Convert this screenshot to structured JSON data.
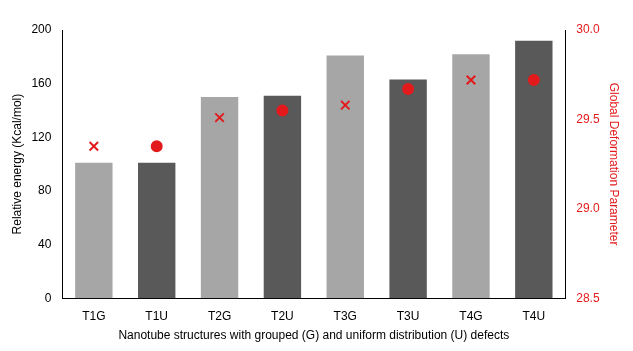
{
  "chart_data": {
    "type": "bar",
    "x_label": "Nanotube structures with grouped (G) and uniform distribution (U) defects",
    "y_label": "Relative energy (Kcal/mol)",
    "y2_label": "Global Deformation Parameter",
    "categories": [
      "T1G",
      "T1U",
      "T2G",
      "T2U",
      "T3G",
      "T3U",
      "T4G",
      "T4U"
    ],
    "series": [
      {
        "type": "bar",
        "values": [
          101,
          101,
          150,
          151,
          181,
          163,
          182,
          192
        ],
        "colors": [
          "#a6a6a6",
          "#595959",
          "#a6a6a6",
          "#595959",
          "#a6a6a6",
          "#595959",
          "#a6a6a6",
          "#595959"
        ]
      },
      {
        "type": "scatter",
        "axis": "y2",
        "marker": "cross",
        "color": "#e31a1c",
        "values": [
          29.35,
          null,
          29.51,
          null,
          29.58,
          null,
          29.72,
          null
        ]
      },
      {
        "type": "scatter",
        "axis": "y2",
        "marker": "circle",
        "color": "#e31a1c",
        "values": [
          null,
          29.35,
          null,
          29.55,
          null,
          29.67,
          null,
          29.72
        ]
      }
    ],
    "ylim": [
      0,
      200
    ],
    "yticks": [
      0,
      40,
      80,
      120,
      160,
      200
    ],
    "y2lim": [
      28.5,
      30.0
    ],
    "y2ticks": [
      {
        "value": 28.5,
        "label": "28.5"
      },
      {
        "value": 29.0,
        "label": "29.0"
      },
      {
        "value": 29.5,
        "label": "29.5"
      },
      {
        "value": 30.0,
        "label": "30.0"
      }
    ],
    "grid": false
  }
}
